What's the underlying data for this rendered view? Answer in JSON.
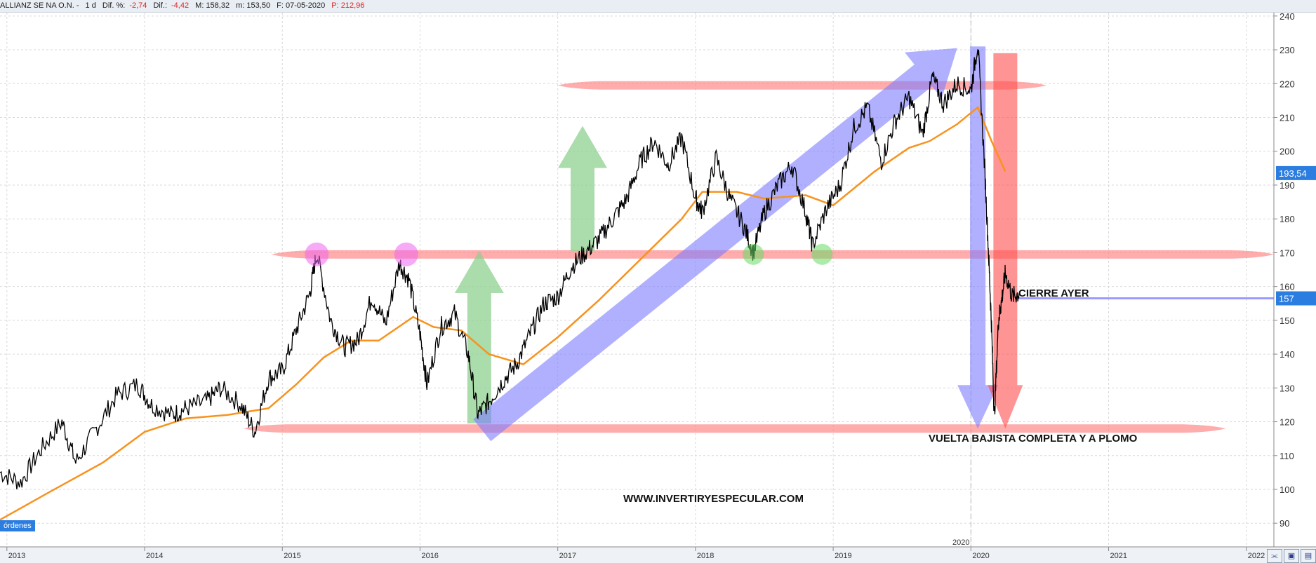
{
  "header": {
    "name": "ALLIANZ SE NA O.N. -",
    "interval": "1 d",
    "dif_pct_label": "Dif. %:",
    "dif_pct_value": "-2,74",
    "dif_label": "Dif.:",
    "dif_value": "-4,42",
    "max_label": "M: 158,32",
    "min_label": "m: 153,50",
    "date_label": "F: 07-05-2020",
    "price_label": "P: 212,96"
  },
  "overlay": {
    "ordenes_label": "órdenes",
    "cierre_label": "CIERRE AYER",
    "vuelta_label": "VUELTA BAJISTA COMPLETA Y A PLOMO",
    "website": "WWW.INVERTIRYESPECULAR.COM",
    "year_marker": "2020"
  },
  "colors": {
    "price": "#000000",
    "moving_average": "#f7931e",
    "support_resistance": "#ff8080",
    "trend_arrow": "#7b7bff",
    "drop_arrow": "#ff4d4d",
    "bull_arrow": "#8fd08f",
    "top_marker": "#ee66ee",
    "bottom_marker": "#66dd66",
    "price_tag": "#2b7de0",
    "last_close_line": "#8a8aff"
  },
  "chart_data": {
    "type": "line",
    "title": "",
    "xlabel": "",
    "ylabel": "",
    "ylim": [
      83,
      241
    ],
    "xlim": [
      2012.95,
      2022.2
    ],
    "y_ticks": [
      90,
      100,
      110,
      120,
      130,
      140,
      150,
      160,
      170,
      180,
      190,
      200,
      210,
      220,
      230,
      240
    ],
    "x_ticks": [
      {
        "x": 2013,
        "label": "2013"
      },
      {
        "x": 2014,
        "label": "2014"
      },
      {
        "x": 2015,
        "label": "2015"
      },
      {
        "x": 2016,
        "label": "2016"
      },
      {
        "x": 2017,
        "label": "2017"
      },
      {
        "x": 2018,
        "label": "2018"
      },
      {
        "x": 2019,
        "label": "2019"
      },
      {
        "x": 2020,
        "label": "2020"
      },
      {
        "x": 2021,
        "label": "2021"
      },
      {
        "x": 2022,
        "label": "2022"
      }
    ],
    "grid": true,
    "series": [
      {
        "kind": "price",
        "x": [
          2012.95,
          2013.1,
          2013.25,
          2013.4,
          2013.5,
          2013.65,
          2013.8,
          2013.95,
          2014.05,
          2014.2,
          2014.3,
          2014.45,
          2014.55,
          2014.7,
          2014.8,
          2014.9,
          2015.0,
          2015.1,
          2015.2,
          2015.25,
          2015.35,
          2015.45,
          2015.55,
          2015.65,
          2015.75,
          2015.85,
          2015.92,
          2016.0,
          2016.05,
          2016.15,
          2016.25,
          2016.35,
          2016.42,
          2016.5,
          2016.6,
          2016.7,
          2016.8,
          2016.9,
          2017.0,
          2017.1,
          2017.2,
          2017.3,
          2017.4,
          2017.5,
          2017.6,
          2017.7,
          2017.8,
          2017.9,
          2018.0,
          2018.05,
          2018.15,
          2018.25,
          2018.35,
          2018.42,
          2018.5,
          2018.6,
          2018.7,
          2018.8,
          2018.85,
          2018.95,
          2019.05,
          2019.15,
          2019.25,
          2019.35,
          2019.45,
          2019.55,
          2019.65,
          2019.72,
          2019.8,
          2019.9,
          2020.0,
          2020.05,
          2020.1,
          2020.13,
          2020.15,
          2020.17,
          2020.2,
          2020.22,
          2020.25,
          2020.3,
          2020.35
        ],
        "values": [
          105,
          102,
          112,
          120,
          108,
          118,
          128,
          131,
          125,
          122,
          124,
          126,
          130,
          125,
          117,
          133,
          135,
          147,
          158,
          170,
          150,
          142,
          144,
          157,
          149,
          167,
          162,
          146,
          131,
          148,
          152,
          140,
          122,
          126,
          132,
          137,
          146,
          155,
          157,
          166,
          170,
          174,
          180,
          186,
          197,
          203,
          196,
          204,
          186,
          182,
          198,
          186,
          178,
          170,
          182,
          190,
          196,
          182,
          172,
          183,
          190,
          207,
          213,
          197,
          209,
          216,
          205,
          222,
          214,
          220,
          218,
          232,
          195,
          168,
          148,
          121,
          150,
          155,
          164,
          157,
          158
        ],
        "name": ""
      },
      {
        "kind": "moving_average",
        "x": [
          2012.95,
          2013.3,
          2013.7,
          2014.0,
          2014.3,
          2014.6,
          2014.9,
          2015.1,
          2015.3,
          2015.5,
          2015.7,
          2015.95,
          2016.1,
          2016.3,
          2016.5,
          2016.75,
          2017.0,
          2017.3,
          2017.6,
          2017.9,
          2018.05,
          2018.3,
          2018.5,
          2018.8,
          2019.0,
          2019.3,
          2019.55,
          2019.7,
          2019.9,
          2020.05,
          2020.15,
          2020.25
        ],
        "values": [
          91,
          99,
          108,
          117,
          121,
          122,
          124,
          131,
          139,
          144,
          144,
          151,
          148,
          147,
          140,
          137,
          145,
          156,
          168,
          180,
          188,
          188,
          186,
          187,
          184,
          194,
          201,
          203,
          208,
          213,
          203,
          194
        ],
        "name": ""
      }
    ],
    "annotations": {
      "horizontal_bands": [
        {
          "y": 219.5,
          "x_start": 2017.0,
          "x_end": 2020.55
        },
        {
          "y": 169.5,
          "x_start": 2014.92,
          "x_end": 2022.2
        },
        {
          "y": 118,
          "x_start": 2014.72,
          "x_end": 2021.85
        }
      ],
      "last_close": {
        "y": 156.5,
        "x_start": 2020.33,
        "x_end": 2022.2,
        "tag": "157"
      },
      "current_tag": {
        "y": 193.54,
        "text": "193,54"
      },
      "top_markers": [
        {
          "x": 2015.25,
          "y": 169.5
        },
        {
          "x": 2015.9,
          "y": 169.5
        }
      ],
      "bottom_markers": [
        {
          "x": 2018.42,
          "y": 169.5
        },
        {
          "x": 2018.92,
          "y": 169.5
        }
      ],
      "bull_arrows": [
        {
          "x": 2016.43,
          "y_from": 119.5,
          "y_to": 170.5
        },
        {
          "x": 2017.18,
          "y_from": 170.5,
          "y_to": 207.5
        }
      ],
      "trend_arrow": {
        "x_from": 2016.45,
        "y_from": 117.5,
        "x_to": 2019.9,
        "y_to": 230.5
      },
      "drop_arrows": [
        {
          "color": "blue",
          "x": 2020.05,
          "y_from": 231,
          "y_to": 118
        },
        {
          "color": "red",
          "x": 2020.25,
          "y_from": 229,
          "y_to": 118
        }
      ],
      "year_divider_x": 2020.0
    }
  }
}
